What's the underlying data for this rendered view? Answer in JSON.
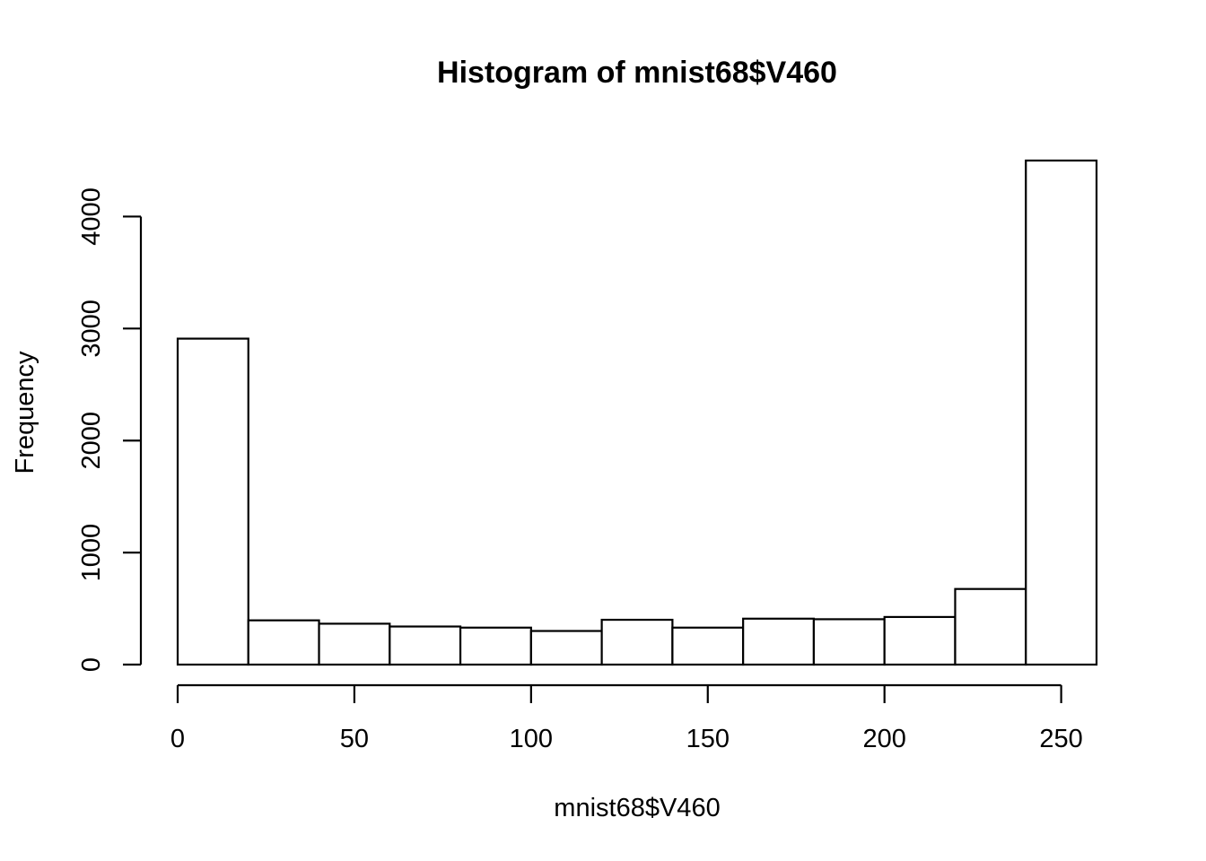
{
  "chart_data": {
    "type": "bar",
    "title": "Histogram of mnist68$V460",
    "xlabel": "mnist68$V460",
    "ylabel": "Frequency",
    "bin_edges": [
      0,
      20,
      40,
      60,
      80,
      100,
      120,
      140,
      160,
      180,
      200,
      220,
      240,
      260
    ],
    "values": [
      2910,
      395,
      365,
      340,
      330,
      300,
      400,
      330,
      410,
      405,
      425,
      675,
      4500
    ],
    "xlim": [
      0,
      260
    ],
    "ylim": [
      0,
      4500
    ],
    "x_ticks": [
      0,
      50,
      100,
      150,
      200,
      250
    ],
    "x_tick_labels": [
      "0",
      "50",
      "100",
      "150",
      "200",
      "250"
    ],
    "y_ticks": [
      0,
      1000,
      2000,
      3000,
      4000
    ],
    "y_tick_labels": [
      "0",
      "1000",
      "2000",
      "3000",
      "4000"
    ],
    "grid": false,
    "legend": "none",
    "bar_fill": "#ffffff",
    "bar_stroke": "#000000"
  }
}
